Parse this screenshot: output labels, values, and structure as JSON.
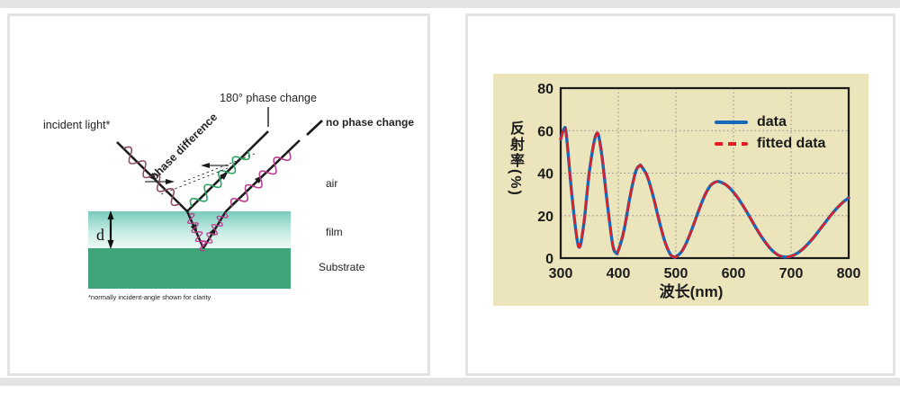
{
  "page": {
    "strip_color": "#e4e4e4",
    "panel_border_color": "#e3e3e3"
  },
  "left_panel": {
    "labels": {
      "incident_light": "incident light*",
      "phase_change_180": "180° phase change",
      "no_phase_change": "no phase change",
      "phase_difference": "phase difference",
      "air": "air",
      "film": "film",
      "substrate": "Substrate",
      "thickness": "d",
      "footnote": "*normally incident-angle shown for clarity"
    },
    "colors": {
      "incident_wave": "#8a4a62",
      "green": "#27a45f",
      "magenta": "#bd3a8e",
      "orange": "#d99b2e",
      "film_top": "#79cabc",
      "film_bottom": "#eef9f5",
      "substrate": "#3fa478",
      "ray": "#1a1a1a"
    }
  },
  "right_panel": {
    "chart_bg": "#ece5bb"
  },
  "chart_data": {
    "type": "line",
    "title": "",
    "xlabel": "波长(nm)",
    "ylabel": "反射率(%)",
    "xlim": [
      300,
      800
    ],
    "ylim": [
      0,
      80
    ],
    "x_ticks": [
      300,
      400,
      500,
      600,
      700,
      800
    ],
    "y_ticks": [
      0,
      20,
      40,
      60,
      80
    ],
    "grid": true,
    "legend_position": "upper right",
    "x": [
      300,
      306,
      310,
      320,
      331,
      340,
      350,
      362,
      370,
      380,
      390,
      396,
      400,
      410,
      420,
      430,
      437,
      440,
      450,
      460,
      470,
      480,
      490,
      497,
      500,
      510,
      520,
      530,
      540,
      550,
      560,
      571,
      580,
      590,
      600,
      610,
      620,
      630,
      640,
      650,
      660,
      670,
      680,
      690,
      700,
      710,
      720,
      730,
      740,
      750,
      760,
      770,
      780,
      790,
      800
    ],
    "series": [
      {
        "name": "data",
        "color": "#1668b8",
        "style": "solid",
        "values": [
          56,
          61,
          57.6,
          28.1,
          5.5,
          15.8,
          41.2,
          58.5,
          51.2,
          27.9,
          6.7,
          2.5,
          3.5,
          13.2,
          28.4,
          40.6,
          43.5,
          43.2,
          38.7,
          29.7,
          18.6,
          8.5,
          1.9,
          0.5,
          0.6,
          3.1,
          8.3,
          15.2,
          22.7,
          29.4,
          34.1,
          36,
          35.5,
          33.8,
          31,
          27.4,
          23.1,
          18.5,
          13.8,
          9.5,
          5.8,
          2.9,
          1.1,
          0.5,
          0.9,
          2.2,
          4.2,
          6.9,
          10,
          13.5,
          17,
          20.5,
          23.6,
          26.3,
          28.3
        ]
      },
      {
        "name": "fitted data",
        "color": "#e51c23",
        "style": "dashed",
        "values": [
          56,
          61,
          57.6,
          28.1,
          5.5,
          15.8,
          41.2,
          58.5,
          51.2,
          27.9,
          6.7,
          2.5,
          3.5,
          13.2,
          28.4,
          40.6,
          43.5,
          43.2,
          38.7,
          29.7,
          18.6,
          8.5,
          1.9,
          0.5,
          0.6,
          3.1,
          8.3,
          15.2,
          22.7,
          29.4,
          34.1,
          36,
          35.5,
          33.8,
          31,
          27.4,
          23.1,
          18.5,
          13.8,
          9.5,
          5.8,
          2.9,
          1.1,
          0.5,
          0.9,
          2.2,
          4.2,
          6.9,
          10,
          13.5,
          17,
          20.5,
          23.6,
          26.3,
          28.3
        ]
      }
    ]
  }
}
